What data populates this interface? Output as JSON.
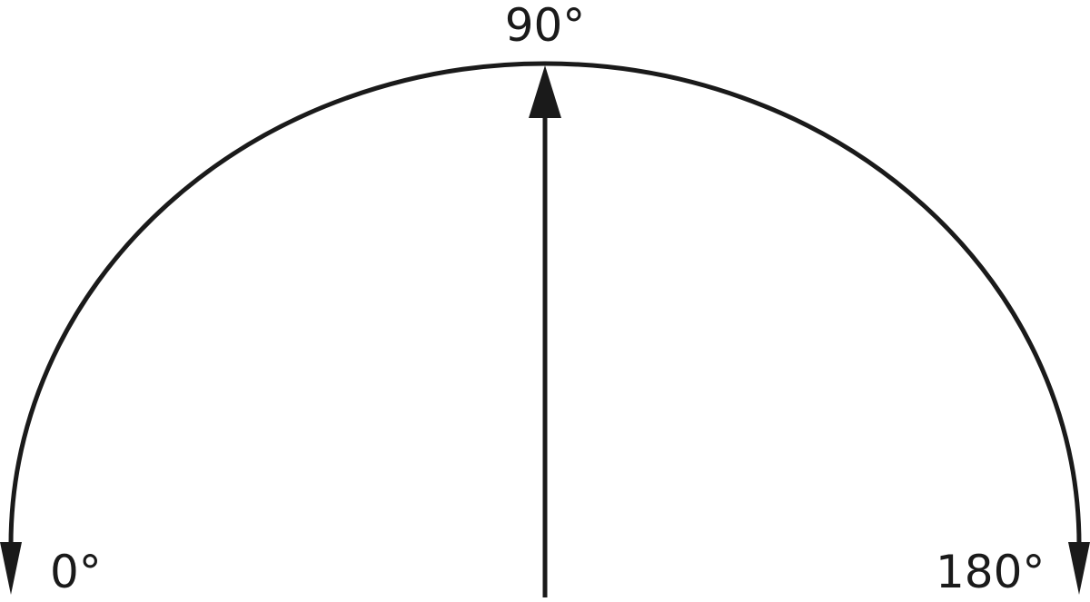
{
  "labels": {
    "start": "0°",
    "middle": "90°",
    "end": "180°"
  },
  "colors": {
    "stroke": "#1a1a1a",
    "background": "#ffffff"
  }
}
